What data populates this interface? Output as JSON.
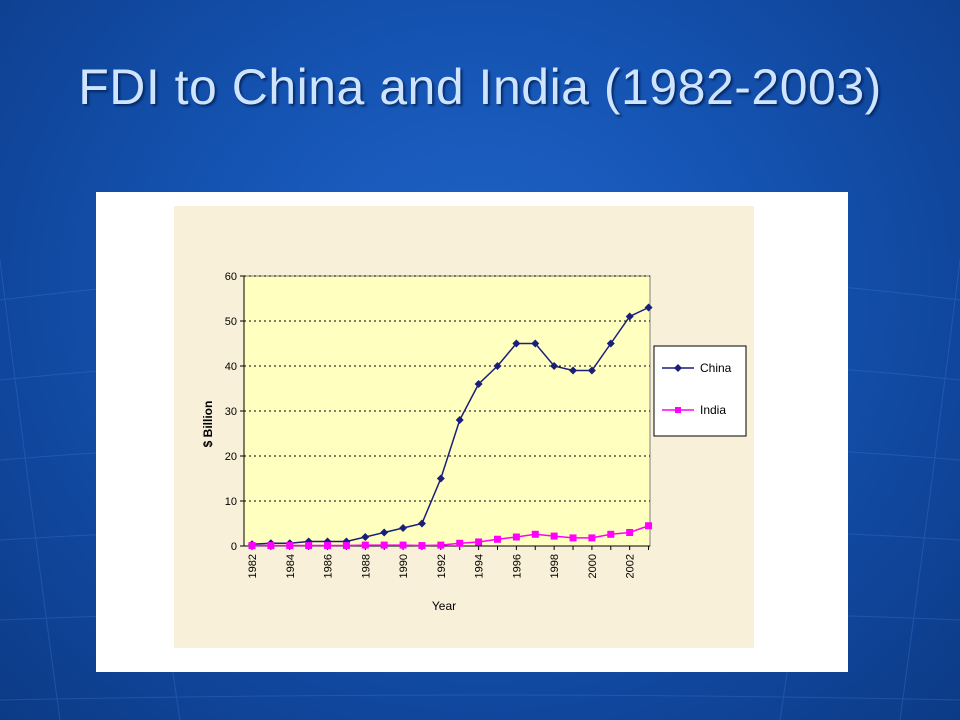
{
  "slide": {
    "title": "FDI to China and India (1982-2003)"
  },
  "colors": {
    "background": "#1452b0",
    "title": "#cfe4ff",
    "chart_area": "#f8f0d8",
    "plot_area": "#ffffc0",
    "china": "#1a1f7a",
    "india": "#ff00ff"
  },
  "chart_data": {
    "type": "line",
    "title": "",
    "xlabel": "Year",
    "ylabel": "$ Billion",
    "ylim": [
      0,
      60
    ],
    "yticks": [
      0,
      10,
      20,
      30,
      40,
      50,
      60
    ],
    "x": [
      1982,
      1983,
      1984,
      1985,
      1986,
      1987,
      1988,
      1989,
      1990,
      1991,
      1992,
      1993,
      1994,
      1995,
      1996,
      1997,
      1998,
      1999,
      2000,
      2001,
      2002,
      2003
    ],
    "xtick_labels": [
      "1982",
      "1984",
      "1986",
      "1988",
      "1990",
      "1992",
      "1994",
      "1996",
      "1998",
      "2000",
      "2002"
    ],
    "grid": "horizontal dotted",
    "legend": "right",
    "series": [
      {
        "name": "China",
        "marker": "diamond",
        "values": [
          0.4,
          0.6,
          0.6,
          1.0,
          1.0,
          1.0,
          2.0,
          3.0,
          4.0,
          5.0,
          15.0,
          28.0,
          36.0,
          40.0,
          45.0,
          45.0,
          40.0,
          39.0,
          39.0,
          45.0,
          51.0,
          53.0
        ]
      },
      {
        "name": "India",
        "marker": "square",
        "values": [
          0.1,
          0.1,
          0.1,
          0.1,
          0.1,
          0.1,
          0.2,
          0.2,
          0.2,
          0.1,
          0.2,
          0.6,
          0.9,
          1.5,
          2.0,
          2.6,
          2.2,
          1.8,
          1.8,
          2.6,
          3.0,
          4.5
        ]
      }
    ]
  }
}
